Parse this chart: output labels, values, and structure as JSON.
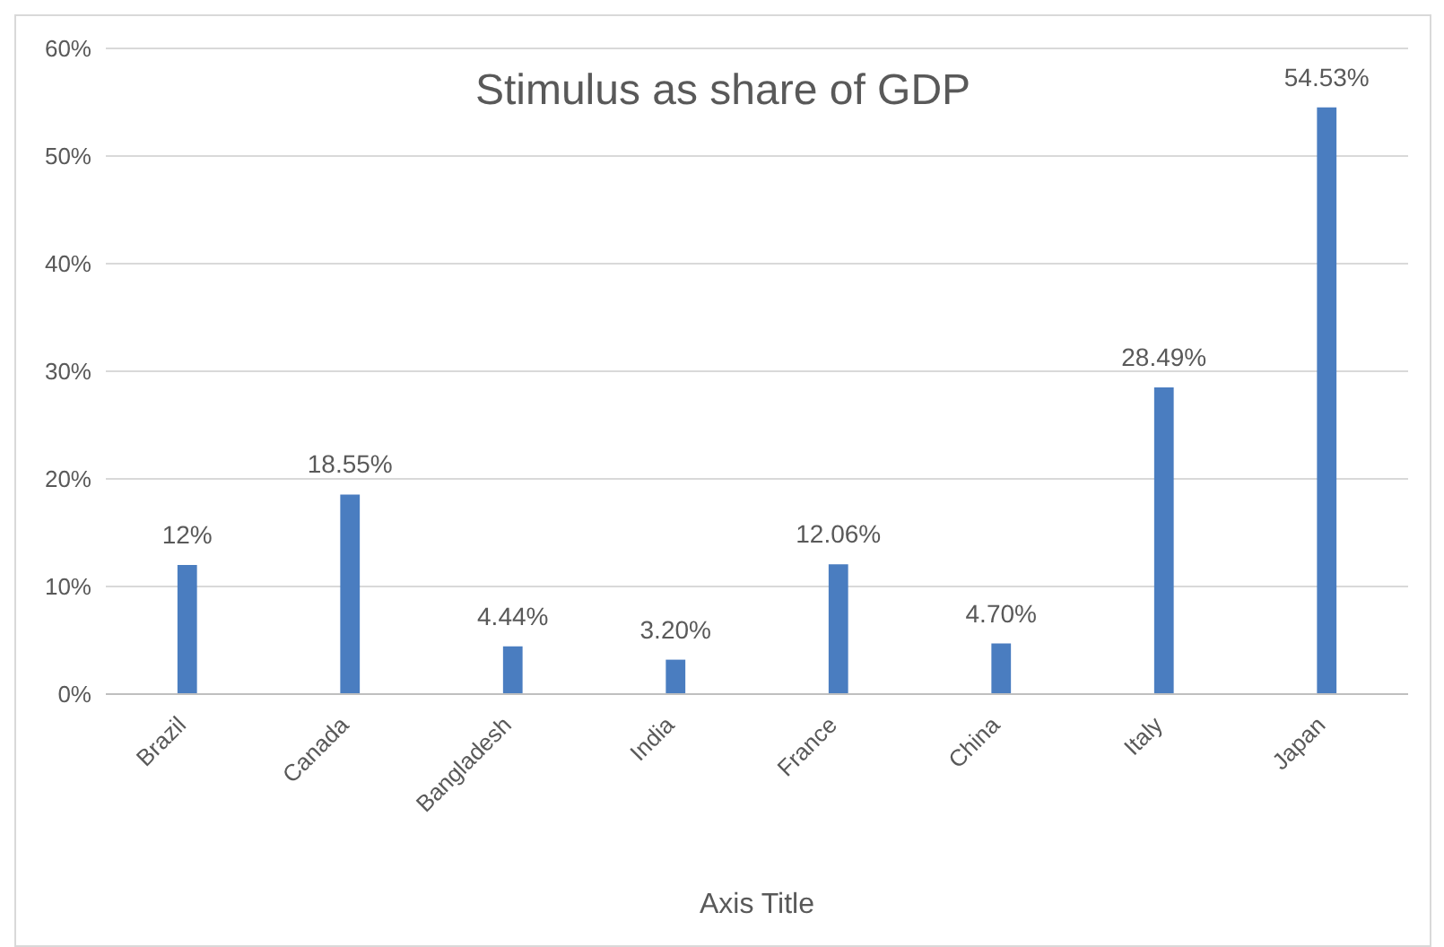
{
  "chart_data": {
    "type": "bar",
    "title": "Stimulus as share of GDP",
    "xlabel": "Axis Title",
    "categories": [
      "Brazil",
      "Canada",
      "Bangladesh",
      "India",
      "France",
      "China",
      "Italy",
      "Japan"
    ],
    "values": [
      12,
      18.55,
      4.44,
      3.2,
      12.06,
      4.7,
      28.49,
      54.53
    ],
    "value_labels": [
      "12%",
      "18.55%",
      "4.44%",
      "3.20%",
      "12.06%",
      "4.70%",
      "28.49%",
      "54.53%"
    ],
    "color": "#4a7dc0",
    "ylim": [
      0,
      60
    ],
    "yticks": [
      {
        "value": 0,
        "label": "0%"
      },
      {
        "value": 10,
        "label": "10%"
      },
      {
        "value": 20,
        "label": "20%"
      },
      {
        "value": 30,
        "label": "30%"
      },
      {
        "value": 40,
        "label": "40%"
      },
      {
        "value": 50,
        "label": "50%"
      },
      {
        "value": 60,
        "label": "60%"
      }
    ],
    "grid": "y",
    "legend": false
  }
}
